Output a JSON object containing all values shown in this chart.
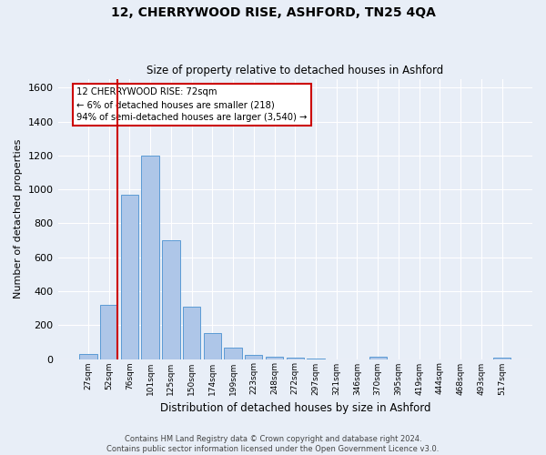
{
  "title": "12, CHERRYWOOD RISE, ASHFORD, TN25 4QA",
  "subtitle": "Size of property relative to detached houses in Ashford",
  "xlabel": "Distribution of detached houses by size in Ashford",
  "ylabel": "Number of detached properties",
  "categories": [
    "27sqm",
    "52sqm",
    "76sqm",
    "101sqm",
    "125sqm",
    "150sqm",
    "174sqm",
    "199sqm",
    "223sqm",
    "248sqm",
    "272sqm",
    "297sqm",
    "321sqm",
    "346sqm",
    "370sqm",
    "395sqm",
    "419sqm",
    "444sqm",
    "468sqm",
    "493sqm",
    "517sqm"
  ],
  "values": [
    30,
    320,
    970,
    1200,
    700,
    310,
    155,
    65,
    25,
    15,
    10,
    5,
    0,
    0,
    15,
    0,
    0,
    0,
    0,
    0,
    10
  ],
  "bar_color": "#aec6e8",
  "bar_edge_color": "#5b9bd5",
  "property_line_bar_index": 1,
  "annotation_text_line1": "12 CHERRYWOOD RISE: 72sqm",
  "annotation_text_line2": "← 6% of detached houses are smaller (218)",
  "annotation_text_line3": "94% of semi-detached houses are larger (3,540) →",
  "annotation_box_color": "#ffffff",
  "annotation_box_edge_color": "#cc0000",
  "ylim": [
    0,
    1650
  ],
  "yticks": [
    0,
    200,
    400,
    600,
    800,
    1000,
    1200,
    1400,
    1600
  ],
  "background_color": "#e8eef7",
  "grid_color": "#ffffff",
  "footer_line1": "Contains HM Land Registry data © Crown copyright and database right 2024.",
  "footer_line2": "Contains public sector information licensed under the Open Government Licence v3.0."
}
